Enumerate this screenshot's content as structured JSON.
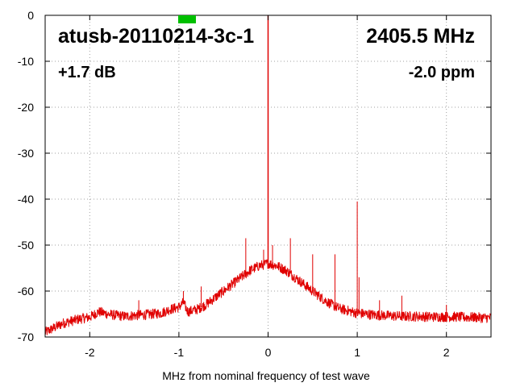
{
  "chart_data": {
    "type": "line",
    "title": "",
    "xlabel": "MHz from nominal frequency of test wave",
    "ylabel": "",
    "xlim": [
      -2.5,
      2.5
    ],
    "ylim": [
      -70,
      0
    ],
    "x_ticks": [
      "-2",
      "-1",
      "0",
      "1",
      "2"
    ],
    "x_tick_values": [
      -2,
      -1,
      0,
      1,
      2
    ],
    "y_ticks": [
      "0",
      "-10",
      "-20",
      "-30",
      "-40",
      "-50",
      "-60",
      "-70"
    ],
    "y_tick_values": [
      0,
      -10,
      -20,
      -30,
      -40,
      -50,
      -60,
      -70
    ],
    "grid": true,
    "annotations": {
      "device": "atusb-20110214-3c-1",
      "frequency": "2405.5 MHz",
      "gain": "+1.7 dB",
      "offset": "-2.0 ppm"
    },
    "marker_color": "#00c000",
    "series": [
      {
        "color": "#e00000",
        "noise_floor": [
          [
            -2.5,
            -69.0
          ],
          [
            -2.4,
            -68.0
          ],
          [
            -2.3,
            -67.0
          ],
          [
            -2.2,
            -66.5
          ],
          [
            -2.1,
            -66.0
          ],
          [
            -2.0,
            -65.7
          ],
          [
            -1.9,
            -64.5
          ],
          [
            -1.8,
            -65.0
          ],
          [
            -1.7,
            -65.3
          ],
          [
            -1.6,
            -65.5
          ],
          [
            -1.5,
            -65.3
          ],
          [
            -1.4,
            -65.2
          ],
          [
            -1.3,
            -65.0
          ],
          [
            -1.2,
            -64.8
          ],
          [
            -1.1,
            -64.0
          ],
          [
            -1.0,
            -63.5
          ],
          [
            -0.95,
            -62.5
          ],
          [
            -0.9,
            -64.5
          ],
          [
            -0.8,
            -64.0
          ],
          [
            -0.7,
            -63.0
          ],
          [
            -0.6,
            -61.5
          ],
          [
            -0.5,
            -60.0
          ],
          [
            -0.4,
            -58.5
          ],
          [
            -0.3,
            -57.0
          ],
          [
            -0.2,
            -55.5
          ],
          [
            -0.1,
            -54.5
          ],
          [
            0.0,
            -54.0
          ],
          [
            0.1,
            -54.5
          ],
          [
            0.2,
            -55.5
          ],
          [
            0.3,
            -57.0
          ],
          [
            0.4,
            -58.5
          ],
          [
            0.5,
            -60.0
          ],
          [
            0.6,
            -61.5
          ],
          [
            0.7,
            -62.8
          ],
          [
            0.8,
            -63.8
          ],
          [
            0.9,
            -64.3
          ],
          [
            1.0,
            -64.8
          ],
          [
            1.1,
            -65.0
          ],
          [
            1.2,
            -65.2
          ],
          [
            1.3,
            -65.3
          ],
          [
            1.4,
            -65.4
          ],
          [
            1.5,
            -65.5
          ],
          [
            1.6,
            -65.5
          ],
          [
            1.7,
            -65.5
          ],
          [
            1.8,
            -65.6
          ],
          [
            1.9,
            -65.6
          ],
          [
            2.0,
            -65.6
          ],
          [
            2.1,
            -65.6
          ],
          [
            2.2,
            -65.7
          ],
          [
            2.3,
            -65.7
          ],
          [
            2.4,
            -65.8
          ],
          [
            2.5,
            -65.8
          ]
        ],
        "spurs": [
          [
            -1.45,
            -62.0
          ],
          [
            -0.95,
            -60.0
          ],
          [
            -0.75,
            -59.0
          ],
          [
            -0.5,
            -61.0
          ],
          [
            -0.25,
            -48.5
          ],
          [
            -0.05,
            -51.0
          ],
          [
            0.0,
            0.0
          ],
          [
            0.05,
            -50.0
          ],
          [
            0.25,
            -48.5
          ],
          [
            0.5,
            -52.0
          ],
          [
            0.75,
            -52.0
          ],
          [
            1.0,
            -40.5
          ],
          [
            1.02,
            -57.0
          ],
          [
            1.25,
            -62.0
          ],
          [
            1.5,
            -61.0
          ],
          [
            2.0,
            -63.0
          ]
        ]
      }
    ]
  }
}
